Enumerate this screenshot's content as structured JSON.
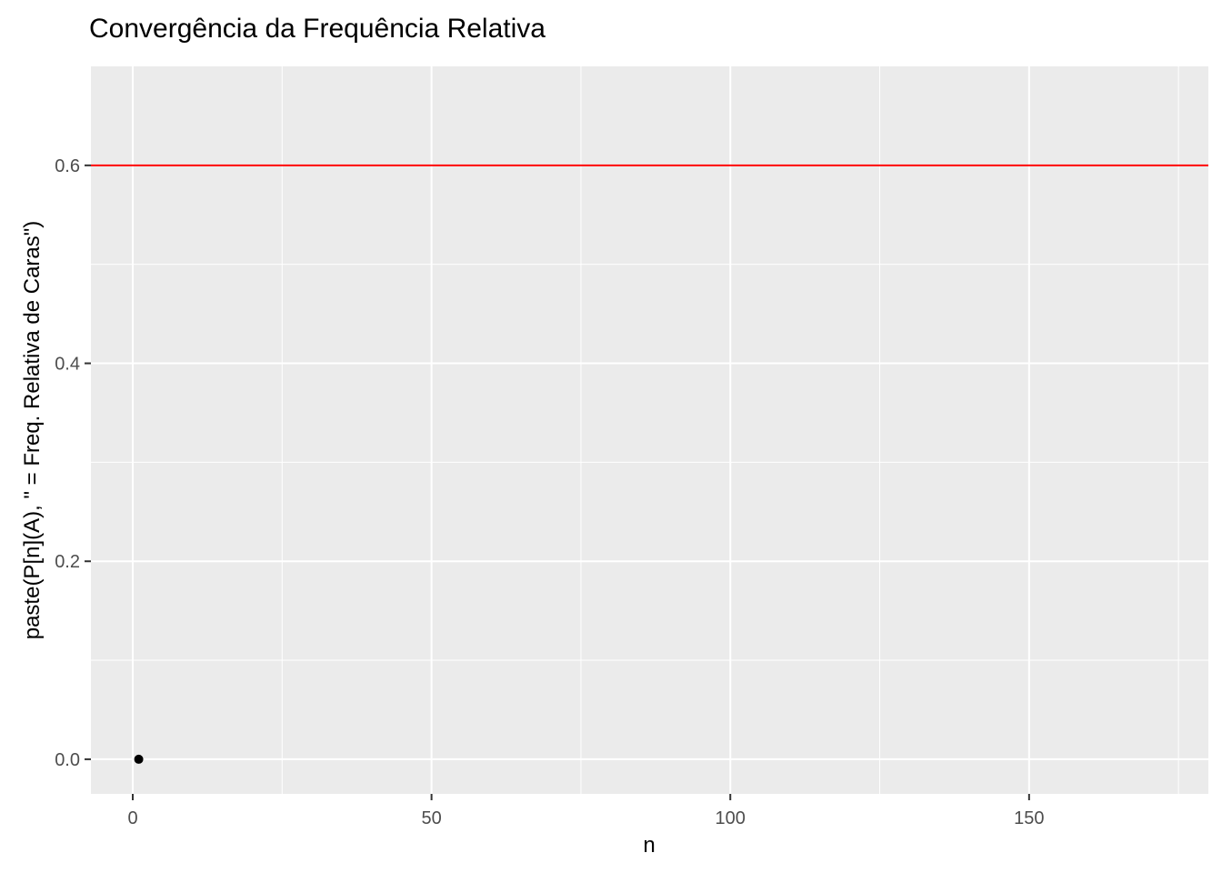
{
  "chart_data": {
    "type": "scatter",
    "title": "Convergência da Frequência Relativa",
    "xlabel": "n",
    "ylabel": "paste(P[n](A), \" = Freq. Relativa de Caras\")",
    "xlim": [
      -7,
      180
    ],
    "ylim": [
      -0.035,
      0.7
    ],
    "x_ticks": [
      0,
      50,
      100,
      150
    ],
    "x_tick_labels": [
      "0",
      "50",
      "100",
      "150"
    ],
    "x_minor_ticks": [
      25,
      75,
      125,
      175
    ],
    "y_ticks": [
      0.0,
      0.2,
      0.4,
      0.6
    ],
    "y_tick_labels": [
      "0.0",
      "0.2",
      "0.4",
      "0.6"
    ],
    "y_minor_ticks": [
      0.1,
      0.3,
      0.5
    ],
    "grid": true,
    "points": [
      {
        "x": 1,
        "y": 0.0
      }
    ],
    "reference_line": {
      "y": 0.6,
      "color": "#ff0000"
    },
    "colors": {
      "panel": "#ebebeb",
      "grid": "#ffffff",
      "point": "#000000"
    }
  }
}
